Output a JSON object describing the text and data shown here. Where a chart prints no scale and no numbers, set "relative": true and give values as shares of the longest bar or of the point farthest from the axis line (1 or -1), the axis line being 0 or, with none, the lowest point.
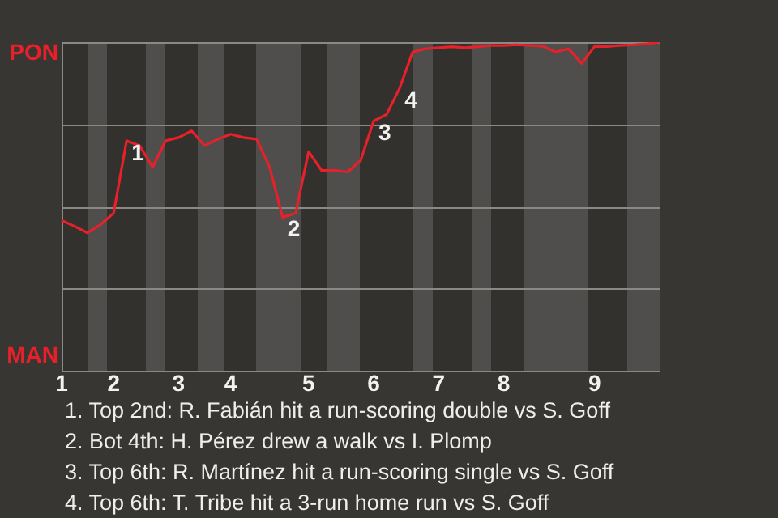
{
  "chart_data": {
    "type": "line",
    "legend": false,
    "grid": "y",
    "marker": "none",
    "line_style": "solid",
    "relative": true,
    "categories": [
      "1",
      null,
      null,
      null,
      "2",
      null,
      null,
      null,
      null,
      "3",
      null,
      null,
      null,
      "4",
      null,
      null,
      null,
      null,
      null,
      "5",
      null,
      null,
      null,
      null,
      "6",
      null,
      null,
      null,
      null,
      "7",
      null,
      null,
      null,
      null,
      "8",
      null,
      null,
      null,
      null,
      null,
      null,
      "9",
      null,
      null,
      null,
      null,
      null
    ],
    "series": [
      {
        "color": "#e8202a",
        "values": [
          0.458,
          0.44,
          0.42,
          0.445,
          0.48,
          0.7,
          0.685,
          0.62,
          0.7,
          0.71,
          0.73,
          0.685,
          0.705,
          0.72,
          0.71,
          0.705,
          0.62,
          0.467,
          0.48,
          0.667,
          0.61,
          0.61,
          0.605,
          0.64,
          0.76,
          0.78,
          0.86,
          0.97,
          0.98,
          0.983,
          0.986,
          0.983,
          0.986,
          0.99,
          0.99,
          0.992,
          0.99,
          0.988,
          0.97,
          0.98,
          0.935,
          0.987,
          0.987,
          0.99,
          0.992,
          0.995,
          1
        ]
      }
    ],
    "annotations": [
      "PON",
      "MAN",
      "1",
      "2",
      "3",
      "4",
      "1. Top 2nd: R. Fabián hit a run-scoring double vs S. Goff",
      "2. Bot 4th: H. Pérez drew a walk vs I. Plomp",
      "3. Top 6th: R. Martínez hit a run-scoring single vs S. Goff",
      "4. Top 6th: T. Tribe hit a 3-run home run vs S. Goff"
    ]
  }
}
